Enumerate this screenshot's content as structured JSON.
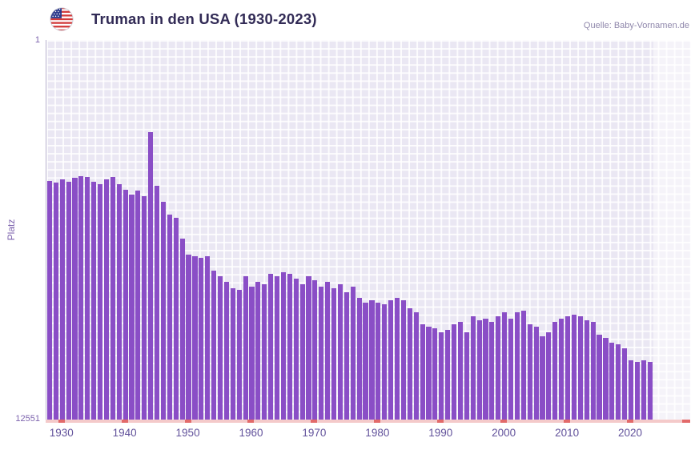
{
  "header": {
    "title": "Truman in den USA (1930-2023)",
    "source": "Quelle: Baby-Vornamen.de"
  },
  "chart_data": {
    "type": "bar",
    "title": "Truman in den USA (1930-2023)",
    "xlabel": "",
    "ylabel": "Platz",
    "y_axis": {
      "min": 1,
      "max": 12551,
      "inverted": true,
      "top_label": "1",
      "bottom_label": "12551"
    },
    "x_range": [
      1927.5,
      2029.5
    ],
    "x_ticks": [
      1930,
      1940,
      1950,
      1960,
      1970,
      1980,
      1990,
      2000,
      2010,
      2020
    ],
    "future_start": 2024,
    "grid": true,
    "legend": "none",
    "colors": {
      "bar": "#8a4ec6",
      "plot_bg": "#eae7f3",
      "axis_line": "#f4caca",
      "tick": "#e26a6a",
      "title_text": "#322b56",
      "x_axis_text": "#62529b",
      "y_axis_text": "#7d63ae"
    },
    "years": [
      1928,
      1929,
      1930,
      1931,
      1932,
      1933,
      1934,
      1935,
      1936,
      1937,
      1938,
      1939,
      1940,
      1941,
      1942,
      1943,
      1944,
      1945,
      1946,
      1947,
      1948,
      1949,
      1950,
      1951,
      1952,
      1953,
      1954,
      1955,
      1956,
      1957,
      1958,
      1959,
      1960,
      1961,
      1962,
      1963,
      1964,
      1965,
      1966,
      1967,
      1968,
      1969,
      1970,
      1971,
      1972,
      1973,
      1974,
      1975,
      1976,
      1977,
      1978,
      1979,
      1980,
      1981,
      1982,
      1983,
      1984,
      1985,
      1986,
      1987,
      1988,
      1989,
      1990,
      1991,
      1992,
      1993,
      1994,
      1995,
      1996,
      1997,
      1998,
      1999,
      2000,
      2001,
      2002,
      2003,
      2004,
      2005,
      2006,
      2007,
      2008,
      2009,
      2010,
      2011,
      2012,
      2013,
      2014,
      2015,
      2016,
      2017,
      2018,
      2019,
      2020,
      2021,
      2022,
      2023
    ],
    "ranks": [
      4650,
      4720,
      4600,
      4690,
      4560,
      4500,
      4520,
      4700,
      4760,
      4600,
      4540,
      4760,
      4950,
      5110,
      4980,
      5160,
      3050,
      4820,
      5350,
      5770,
      5880,
      6570,
      7100,
      7150,
      7200,
      7150,
      7630,
      7810,
      8000,
      8210,
      8260,
      7810,
      8160,
      8000,
      8080,
      7730,
      7810,
      7680,
      7730,
      7890,
      8080,
      7810,
      7940,
      8160,
      8000,
      8210,
      8080,
      8340,
      8160,
      8530,
      8680,
      8610,
      8680,
      8740,
      8610,
      8530,
      8610,
      8870,
      9000,
      9400,
      9480,
      9530,
      9660,
      9580,
      9400,
      9320,
      9660,
      9140,
      9270,
      9210,
      9320,
      9140,
      9000,
      9210,
      9000,
      8950,
      9400,
      9480,
      9800,
      9660,
      9320,
      9210,
      9140,
      9080,
      9140,
      9270,
      9320,
      9740,
      9850,
      10010,
      10060,
      10190,
      10590,
      10640,
      10600,
      10650
    ]
  }
}
